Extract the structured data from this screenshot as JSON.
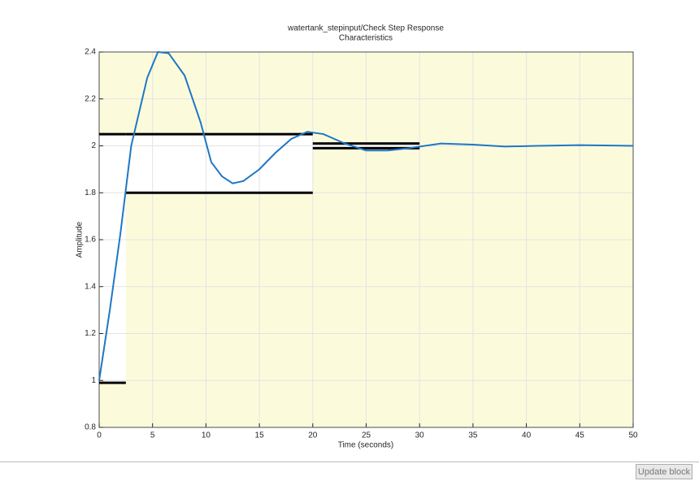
{
  "chart_data": {
    "type": "line",
    "title": [
      "watertank_stepinput/Check  Step  Response",
      "Characteristics"
    ],
    "x_label": "Time (seconds)",
    "y_label": "Amplitude",
    "xlim": [
      0,
      50
    ],
    "ylim": [
      0.8,
      2.4
    ],
    "xticks": [
      0,
      5,
      10,
      15,
      20,
      25,
      30,
      35,
      40,
      45,
      50
    ],
    "yticks": [
      0.8,
      1,
      1.2,
      1.4,
      1.6,
      1.8,
      2,
      2.2,
      2.4
    ],
    "grid": true,
    "background_color": "#fbfbdc",
    "bound_fill": "#ffffff",
    "bound_line_color": "#000000",
    "series": [
      {
        "color": "#1f77c4",
        "x": [
          0,
          1,
          2,
          3,
          4.5,
          5.5,
          6.5,
          8,
          9.5,
          10.5,
          11.5,
          12.5,
          13.5,
          15,
          16.5,
          18,
          19.5,
          21,
          23,
          25,
          27,
          29,
          32,
          35,
          38,
          41,
          45,
          50
        ],
        "values": [
          1.0,
          1.3,
          1.63,
          2.0,
          2.29,
          2.4,
          2.395,
          2.3,
          2.1,
          1.93,
          1.87,
          1.84,
          1.85,
          1.9,
          1.97,
          2.03,
          2.06,
          2.05,
          2.01,
          1.98,
          1.98,
          1.99,
          2.01,
          2.005,
          1.997,
          2.0,
          2.003,
          2.0
        ]
      }
    ],
    "bounds": [
      {
        "x": [
          0,
          2.5
        ],
        "lower": 0.99,
        "upper": 2.05
      },
      {
        "x": [
          2.5,
          20
        ],
        "lower": 1.8,
        "upper": 2.05
      },
      {
        "x": [
          20,
          30
        ],
        "lower": 1.99,
        "upper": 2.01
      }
    ]
  },
  "button": {
    "label": "Update block"
  }
}
